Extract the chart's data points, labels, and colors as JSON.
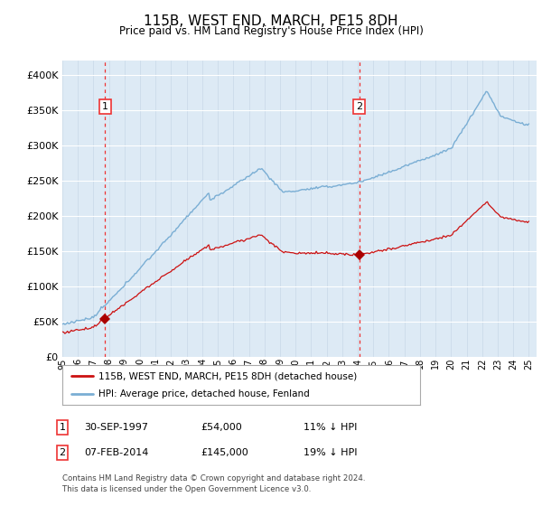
{
  "title": "115B, WEST END, MARCH, PE15 8DH",
  "subtitle": "Price paid vs. HM Land Registry's House Price Index (HPI)",
  "sale1_date": "30-SEP-1997",
  "sale1_price": 54000,
  "sale1_label": "1",
  "sale1_year": 1997.75,
  "sale2_date": "07-FEB-2014",
  "sale2_price": 145000,
  "sale2_label": "2",
  "sale2_year": 2014.1,
  "legend_line1": "115B, WEST END, MARCH, PE15 8DH (detached house)",
  "legend_line2": "HPI: Average price, detached house, Fenland",
  "table_row1": [
    "1",
    "30-SEP-1997",
    "£54,000",
    "11% ↓ HPI"
  ],
  "table_row2": [
    "2",
    "07-FEB-2014",
    "£145,000",
    "19% ↓ HPI"
  ],
  "footnote": "Contains HM Land Registry data © Crown copyright and database right 2024.\nThis data is licensed under the Open Government Licence v3.0.",
  "hpi_color": "#7aaed4",
  "price_color": "#cc1111",
  "vline_color": "#ee3333",
  "marker_color": "#aa0000",
  "background_plot": "#ddeaf5",
  "ylim_max": 420000,
  "xlim_start": 1995.0,
  "xlim_end": 2025.5
}
